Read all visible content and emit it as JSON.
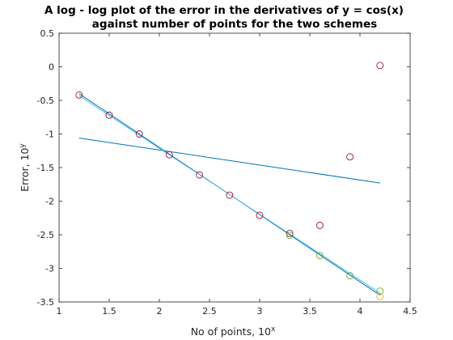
{
  "chart_data": {
    "type": "line",
    "title_line1": "A log - log plot of the error in the derivatives of y = cos(x)",
    "title_line2": "against number of points for the two schemes",
    "xlabel": "No of points, 10",
    "xlabel_sup": "x",
    "ylabel": "Error, 10",
    "ylabel_sup": "y",
    "xlim": [
      1,
      4.5
    ],
    "ylim": [
      -3.5,
      0.5
    ],
    "xticks": [
      "1",
      "1.5",
      "2",
      "2.5",
      "3",
      "3.5",
      "4",
      "4.5"
    ],
    "yticks": [
      "0.5",
      "0",
      "-0.5",
      "-1",
      "-1.5",
      "-2",
      "-2.5",
      "-3",
      "-3.5"
    ],
    "grid": false,
    "series": [
      {
        "style": "markers",
        "color": "#a2142f",
        "x": [
          1.2,
          1.5,
          1.8,
          2.1,
          2.4,
          2.7,
          3.0,
          3.3,
          3.6,
          3.9,
          4.2
        ],
        "y": [
          -0.42,
          -0.72,
          -1.0,
          -1.31,
          -1.61,
          -1.91,
          -2.21,
          -2.48,
          -2.36,
          -1.34,
          0.02
        ]
      },
      {
        "style": "markers",
        "color": "#77ac30",
        "x": [
          3.3,
          3.6,
          3.9,
          4.2
        ],
        "y": [
          -2.51,
          -2.81,
          -3.11,
          -3.34
        ]
      },
      {
        "style": "markers",
        "color": "#edb120",
        "x": [
          4.2
        ],
        "y": [
          -3.42
        ]
      },
      {
        "style": "line",
        "color": "#0072bd",
        "x": [
          1.2,
          4.2
        ],
        "y": [
          -1.06,
          -1.73
        ]
      },
      {
        "style": "line",
        "color": "#0072bd",
        "x": [
          1.2,
          4.2
        ],
        "y": [
          -0.4,
          -3.4
        ]
      },
      {
        "style": "line",
        "color": "#4dbeee",
        "x": [
          1.2,
          4.2
        ],
        "y": [
          -0.43,
          -3.37
        ]
      }
    ]
  }
}
